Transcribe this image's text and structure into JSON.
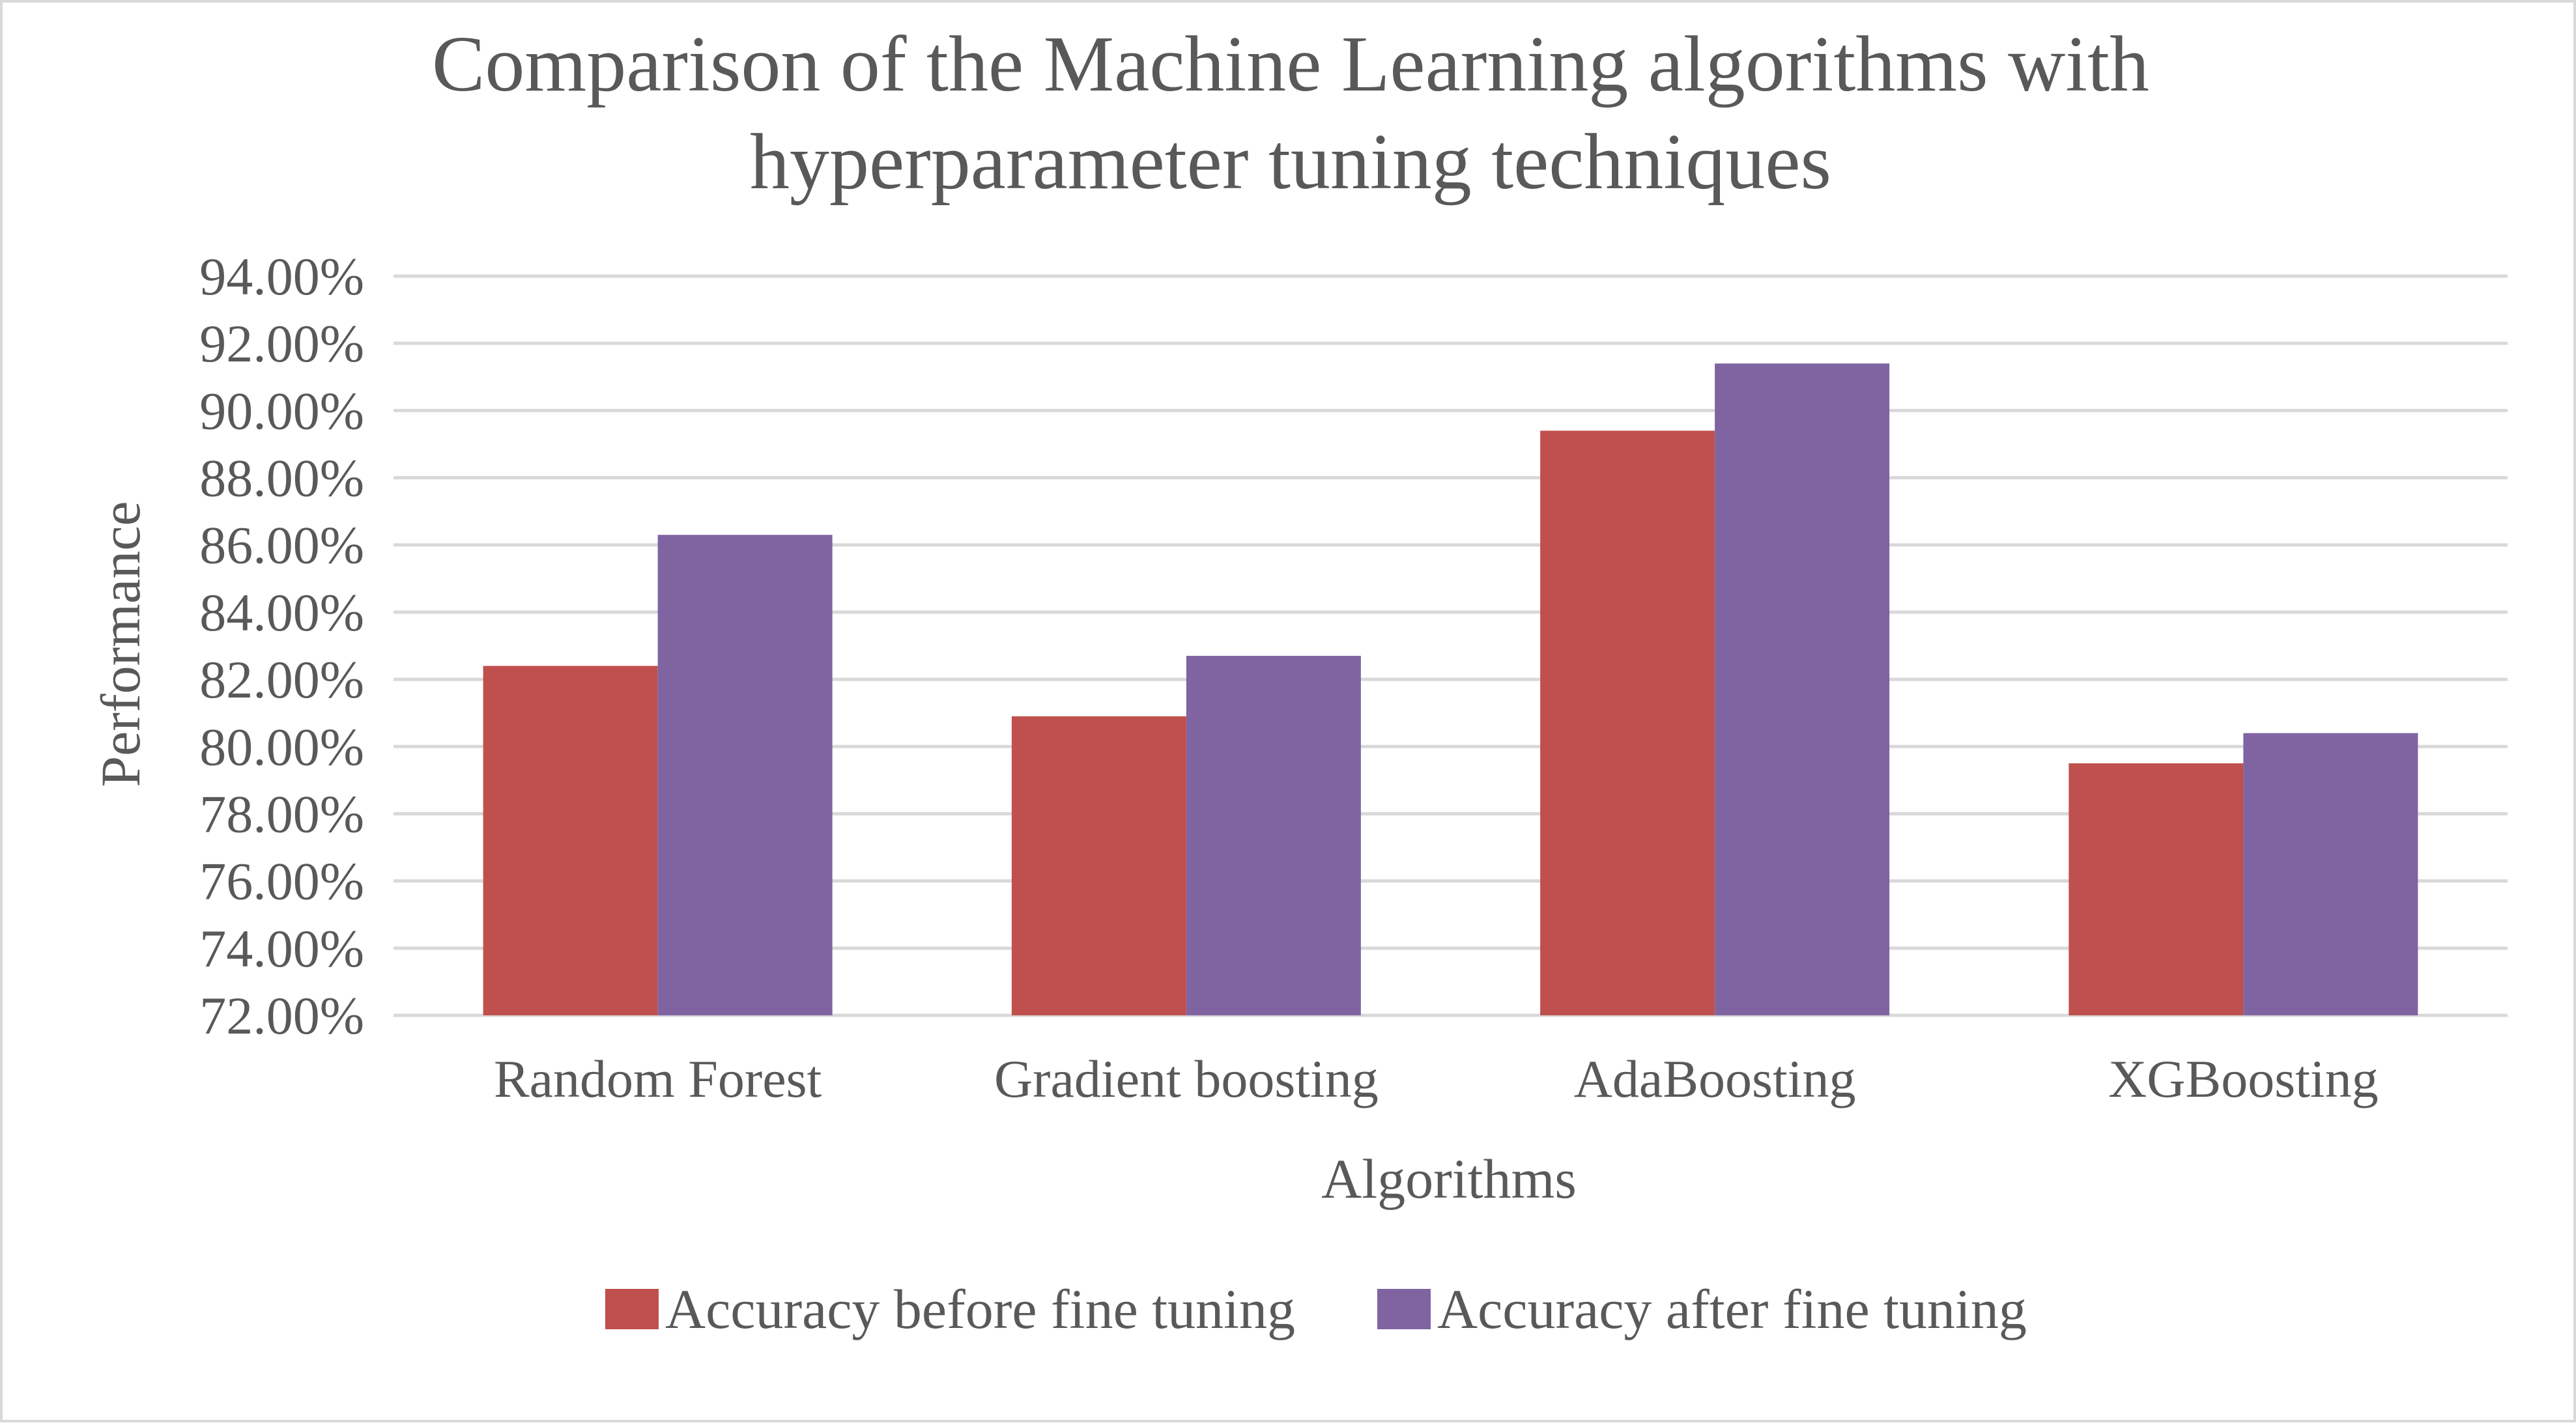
{
  "chart_data": {
    "type": "bar",
    "title_lines": [
      "Comparison of the Machine Learning algorithms with",
      "hyperparameter tuning techniques"
    ],
    "xlabel": "Algorithms",
    "ylabel": "Performance",
    "categories": [
      "Random Forest",
      "Gradient boosting",
      "AdaBoosting",
      "XGBoosting"
    ],
    "series": [
      {
        "name": "Accuracy before fine tuning",
        "color": "#c0504d",
        "values": [
          0.824,
          0.809,
          0.894,
          0.795
        ]
      },
      {
        "name": "Accuracy after fine tuning",
        "color": "#8064a2",
        "values": [
          0.863,
          0.827,
          0.914,
          0.804
        ]
      }
    ],
    "ylim": [
      0.72,
      0.94
    ],
    "yticks": [
      0.72,
      0.74,
      0.76,
      0.78,
      0.8,
      0.82,
      0.84,
      0.86,
      0.88,
      0.9,
      0.92,
      0.94
    ],
    "ytick_labels": [
      "72.00%",
      "74.00%",
      "76.00%",
      "78.00%",
      "80.00%",
      "82.00%",
      "84.00%",
      "86.00%",
      "88.00%",
      "90.00%",
      "92.00%",
      "94.00%"
    ],
    "grid": true,
    "legend_position": "bottom"
  }
}
